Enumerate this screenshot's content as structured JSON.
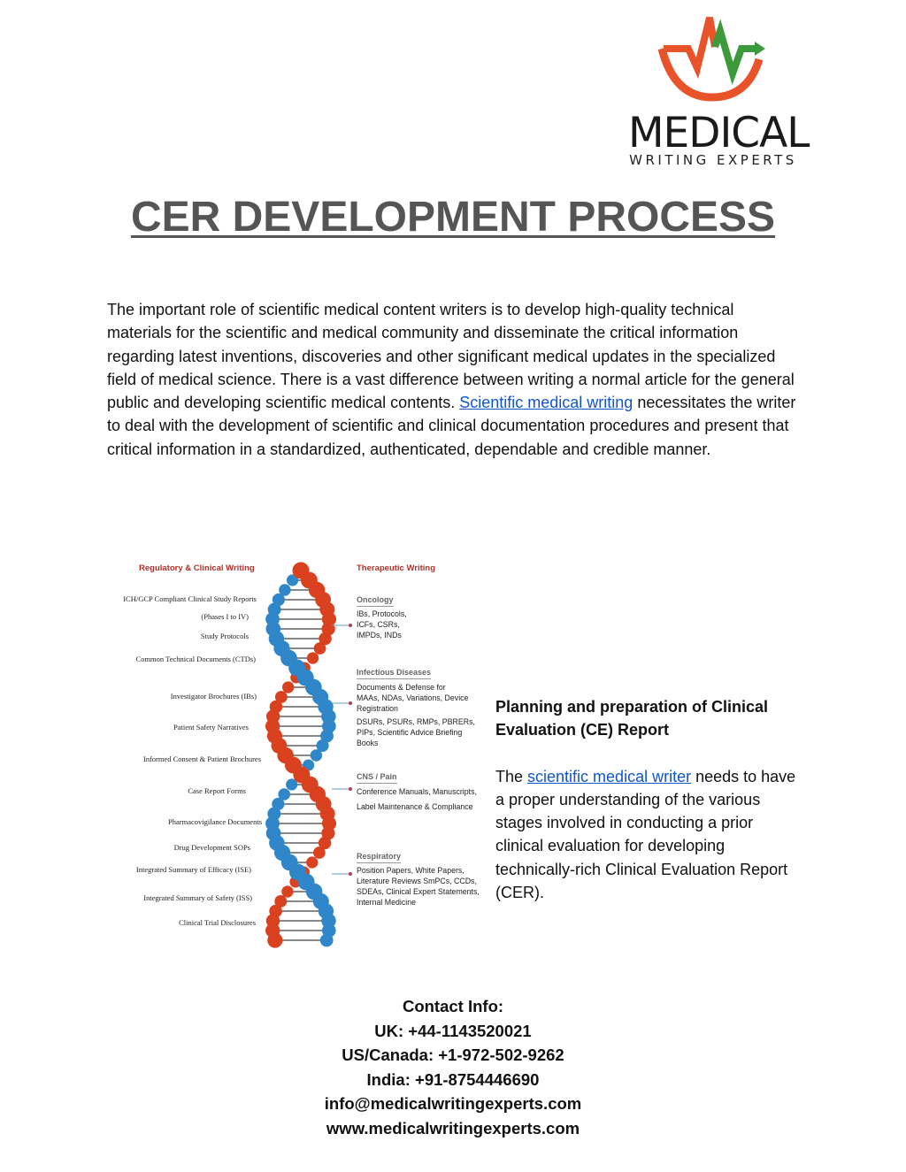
{
  "logo": {
    "wordmark": "MEDICAL",
    "tagline": "WRITING EXPERTS",
    "colors": {
      "orange": "#e8532a",
      "green": "#3c9a3c"
    }
  },
  "title": "CER DEVELOPMENT PROCESS",
  "intro": {
    "text_before": "The important role of scientific medical content writers is to develop high-quality technical materials for the scientific and medical community and disseminate the critical information regarding latest inventions, discoveries and other significant medical updates in the specialized field of medical science. There is a vast difference between writing a normal article for the general public and developing scientific medical contents. ",
    "link": "Scientific medical writing",
    "text_after": " necessitates the writer to deal with the development of scientific and clinical documentation procedures and present that critical information in a standardized, authenticated, dependable and credible manner."
  },
  "infographic": {
    "left_heading": "Regulatory & Clinical Writing",
    "left_items": [
      "ICH/GCP Compliant Clinical Study Reports",
      "(Phases I to IV)",
      "Study Protocols",
      "Common Technical Documents (CTDs)",
      "Investigator Brochures (IBs)",
      "Patient Safety Narratives",
      "Informed Consent & Patient Brochures",
      "Case Report Forms",
      "Pharmacovigilance Documents",
      "Drug Development SOPs",
      "Integrated Summary of Efficacy (ISE)",
      "Integrated Summary of Safety (ISS)",
      "Clinical Trial Disclosures"
    ],
    "right_heading": "Therapeutic Writing",
    "sections": [
      {
        "title": "Oncology",
        "items": [
          "IBs, Protocols,",
          "ICFs, CSRs,",
          "IMPDs, INDs"
        ]
      },
      {
        "title": "Infectious Diseases",
        "items": [
          "Documents & Defense for",
          "MAAs, NDAs, Variations, Device",
          "Registration",
          "DSURs, PSURs, RMPs, PBRERs,",
          "PIPs, Scientific Advice Briefing",
          "Books"
        ]
      },
      {
        "title": "CNS / Pain",
        "items": [
          "Conference Manuals, Manuscripts,",
          "Label Maintenance & Compliance"
        ]
      },
      {
        "title": "Respiratory",
        "items": [
          "Position Papers, White Papers,",
          "Literature Reviews SmPCs, CCDs,",
          "SDEAs, Clinical Expert Statements,",
          "Internal Medicine"
        ]
      }
    ],
    "colors": {
      "red": "#d9411f",
      "blue": "#2f86c9"
    }
  },
  "side": {
    "title": "Planning and preparation of Clinical Evaluation (CE) Report",
    "text_before": "The ",
    "link": "scientific medical writer",
    "text_after": " needs to have a proper understanding of the various stages involved in conducting a prior clinical evaluation for developing technically-rich Clinical Evaluation Report (CER)."
  },
  "contact": {
    "heading": "Contact Info:",
    "uk": "UK: +44-1143520021",
    "us": "US/Canada: +1-972-502-9262",
    "india": "India: +91-8754446690",
    "email": "info@medicalwritingexperts.com",
    "web": "www.medicalwritingexperts.com"
  }
}
